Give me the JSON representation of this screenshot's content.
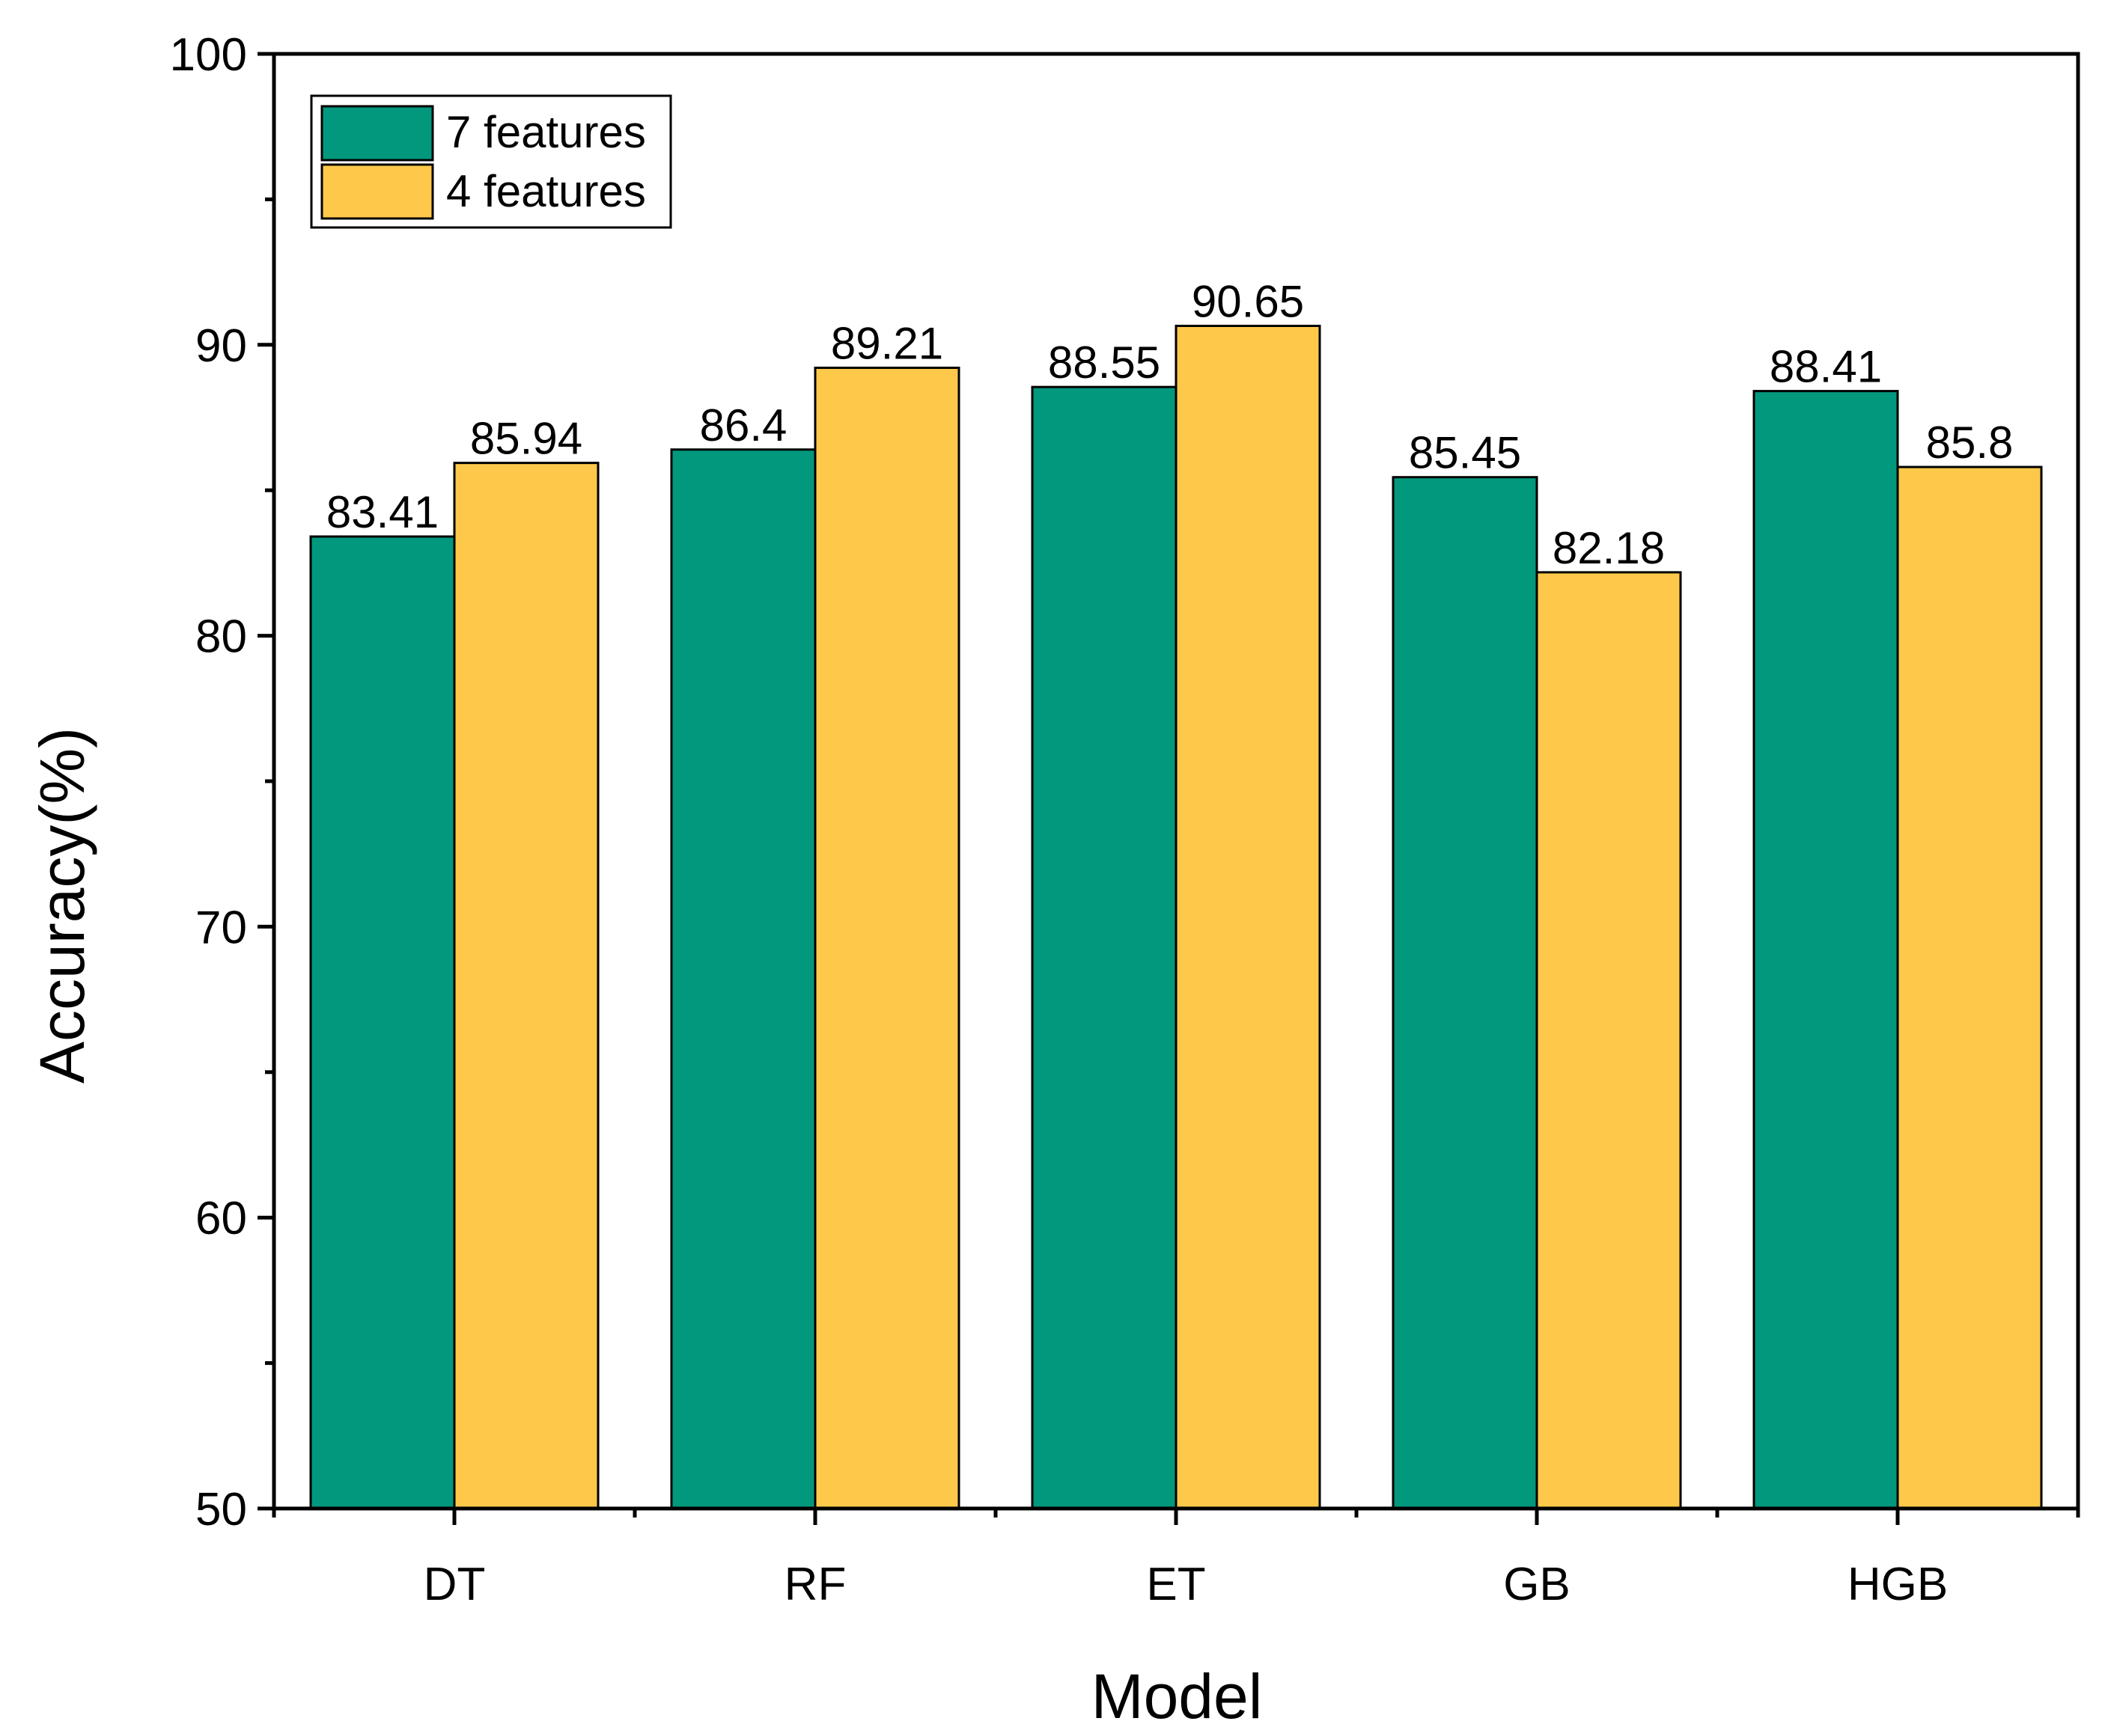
{
  "chart_data": {
    "type": "bar",
    "title": "",
    "xlabel": "Model",
    "ylabel": "Accuracy(%)",
    "categories": [
      "DT",
      "RF",
      "ET",
      "GB",
      "HGB"
    ],
    "series": [
      {
        "name": "7 features",
        "values": [
          83.41,
          86.4,
          88.55,
          85.45,
          88.41
        ],
        "labels": [
          "83.41",
          "86.4",
          "88.55",
          "85.45",
          "88.41"
        ]
      },
      {
        "name": "4 features",
        "values": [
          85.94,
          89.21,
          90.65,
          82.18,
          85.8
        ],
        "labels": [
          "85.94",
          "89.21",
          "90.65",
          "82.18",
          "85.8"
        ]
      }
    ],
    "ylim": [
      50,
      100
    ],
    "yticks": [
      50,
      60,
      70,
      80,
      90,
      100
    ],
    "yticks_minor": [
      55,
      65,
      75,
      85,
      95
    ],
    "grid": false,
    "legend_position": "top-left",
    "colors": {
      "7 features": "#02987e",
      "4 features": "#fec94a",
      "axis": "#000000",
      "bar_outline": "#000000"
    }
  }
}
